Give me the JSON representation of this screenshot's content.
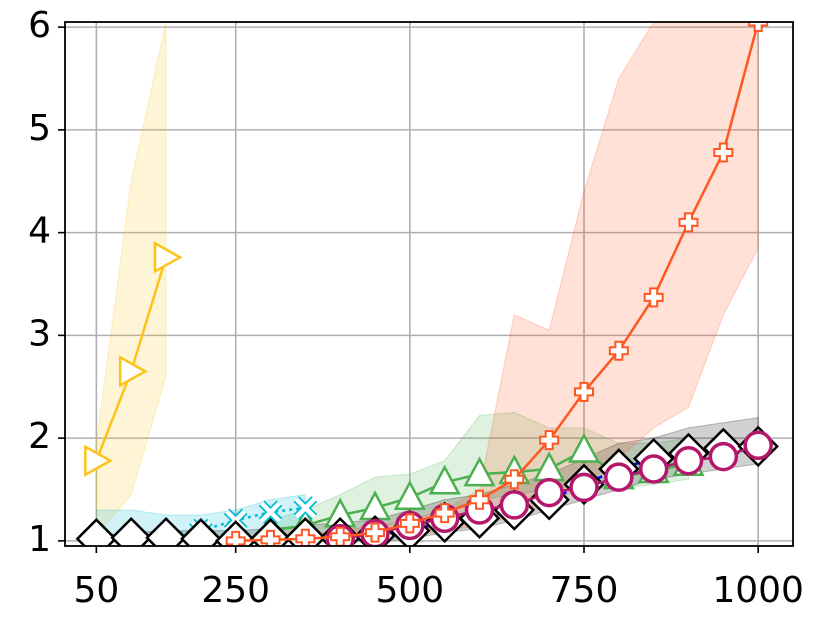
{
  "chart_data": {
    "type": "line",
    "xlim": [
      5,
      1050
    ],
    "ylim": [
      0.95,
      6.05
    ],
    "xticks": [
      50,
      250,
      500,
      750,
      1000
    ],
    "yticks": [
      1,
      2,
      3,
      4,
      5,
      6
    ],
    "grid": true,
    "series": [
      {
        "color": "#fcc419",
        "marker": "triangle-right",
        "line": "solid",
        "x": [
          50,
          100,
          150
        ],
        "values": [
          1.78,
          2.65,
          3.76
        ],
        "band_low": [
          1.05,
          1.45,
          2.6
        ],
        "band_high": [
          1.95,
          4.5,
          6.05
        ]
      },
      {
        "color": "#4caf50",
        "marker": "triangle",
        "line": "solid",
        "x": [
          300,
          350,
          400,
          450,
          500,
          550,
          600,
          650,
          700,
          750,
          800,
          850,
          900
        ],
        "values": [
          1.1,
          1.15,
          1.25,
          1.32,
          1.42,
          1.57,
          1.65,
          1.67,
          1.7,
          1.88,
          1.62,
          1.68,
          1.75
        ],
        "band_low": [
          1.0,
          1.02,
          1.08,
          1.12,
          1.2,
          1.3,
          1.4,
          1.45,
          1.5,
          1.55,
          1.5,
          1.55,
          1.6
        ],
        "band_high": [
          1.2,
          1.3,
          1.45,
          1.62,
          1.65,
          1.78,
          2.22,
          2.25,
          2.1,
          2.1,
          1.95,
          1.95,
          2.0
        ]
      },
      {
        "color": "#00bcd4",
        "marker": "x",
        "line": "dotted",
        "x": [
          50,
          100,
          150,
          200,
          250,
          300,
          350
        ],
        "values": [
          1.0,
          1.02,
          1.05,
          1.1,
          1.2,
          1.28,
          1.32
        ],
        "band_low": [
          1.0,
          1.0,
          1.0,
          1.02,
          1.05,
          1.1,
          1.15
        ],
        "band_high": [
          1.3,
          1.3,
          1.25,
          1.25,
          1.3,
          1.4,
          1.45
        ]
      },
      {
        "color": "#000000",
        "line_color": "#0000ff",
        "marker": "diamond",
        "line": "dashed",
        "x": [
          50,
          100,
          150,
          200,
          250,
          300,
          350,
          400,
          450,
          500,
          550,
          600,
          650,
          700,
          750,
          800,
          850,
          900,
          950,
          1000
        ],
        "values": [
          1.02,
          1.03,
          1.03,
          1.02,
          1.0,
          1.02,
          1.03,
          1.03,
          1.05,
          1.1,
          1.18,
          1.22,
          1.3,
          1.4,
          1.55,
          1.7,
          1.8,
          1.85,
          1.9,
          1.92
        ],
        "band_low": [
          1.0,
          1.0,
          1.0,
          1.0,
          1.0,
          1.0,
          1.0,
          1.0,
          1.0,
          1.02,
          1.08,
          1.12,
          1.2,
          1.3,
          1.4,
          1.5,
          1.6,
          1.65,
          1.7,
          1.75
        ],
        "band_high": [
          1.05,
          1.08,
          1.1,
          1.1,
          1.1,
          1.12,
          1.15,
          1.18,
          1.2,
          1.3,
          1.4,
          1.45,
          1.55,
          1.65,
          1.8,
          1.95,
          2.0,
          2.1,
          2.15,
          2.2
        ]
      },
      {
        "color": "#b5176d",
        "marker": "circle",
        "line": "solid",
        "x": [
          400,
          450,
          500,
          550,
          600,
          650,
          700,
          750,
          800,
          850,
          900,
          950,
          1000
        ],
        "values": [
          1.02,
          1.07,
          1.15,
          1.22,
          1.3,
          1.35,
          1.47,
          1.52,
          1.62,
          1.7,
          1.78,
          1.82,
          1.93
        ]
      },
      {
        "color": "#ff5722",
        "marker": "plus",
        "line": "solid",
        "x": [
          250,
          300,
          350,
          400,
          450,
          500,
          550,
          600,
          650,
          700,
          750,
          800,
          850,
          900,
          950,
          1000
        ],
        "values": [
          1.0,
          1.01,
          1.02,
          1.04,
          1.08,
          1.17,
          1.27,
          1.4,
          1.6,
          1.98,
          2.45,
          2.85,
          3.37,
          4.1,
          4.78,
          6.05
        ],
        "band_low": [
          1.0,
          1.0,
          1.0,
          1.0,
          1.02,
          1.05,
          1.1,
          1.15,
          1.25,
          1.35,
          1.55,
          1.8,
          2.1,
          2.3,
          3.2,
          3.85
        ],
        "band_high": [
          1.03,
          1.05,
          1.06,
          1.1,
          1.15,
          1.2,
          1.3,
          1.5,
          3.2,
          3.05,
          4.4,
          5.5,
          6.05,
          6.05,
          6.05,
          6.05
        ]
      }
    ]
  }
}
